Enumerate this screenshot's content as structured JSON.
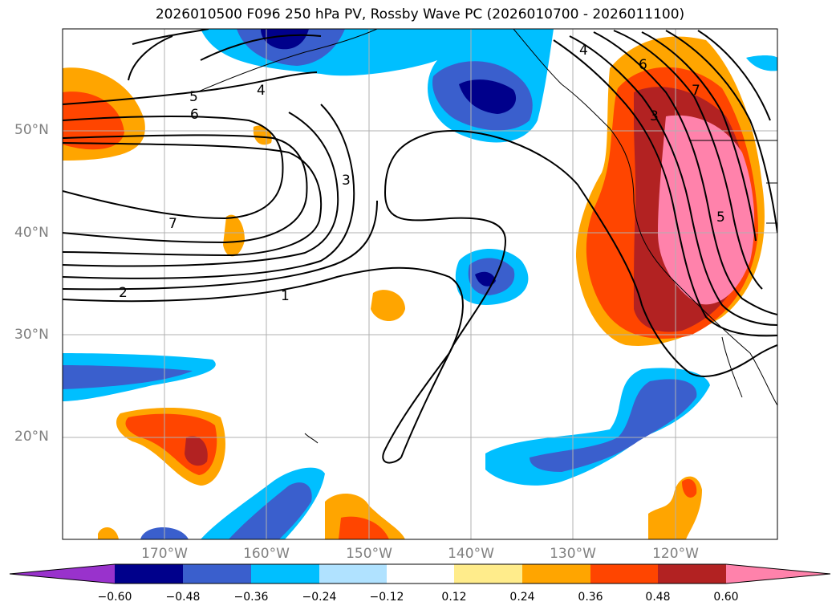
{
  "title": "2026010500 F096 250 hPa PV, Rossby Wave PC (2026010700 - 2026011100)",
  "map": {
    "lat_labels": [
      "50°N",
      "40°N",
      "30°N",
      "20°N"
    ],
    "lon_labels": [
      "170°W",
      "160°W",
      "150°W",
      "140°W",
      "130°W",
      "120°W"
    ],
    "contour_labels": [
      "4",
      "5",
      "6",
      "3",
      "7",
      "2",
      "1",
      "4",
      "6",
      "7",
      "3",
      "5"
    ],
    "gridline_color": "#b0b0b0"
  },
  "colorbar": {
    "tick_labels": [
      "−0.60",
      "−0.48",
      "−0.36",
      "−0.24",
      "−0.12",
      "0.12",
      "0.24",
      "0.36",
      "0.48",
      "0.60"
    ],
    "colors": [
      "#9932cc",
      "#00008b",
      "#3a5fcd",
      "#00bfff",
      "#b0e2ff",
      "#ffffff",
      "#ffec8b",
      "#ffa500",
      "#ff4500",
      "#b22222",
      "#ff82ab"
    ]
  }
}
